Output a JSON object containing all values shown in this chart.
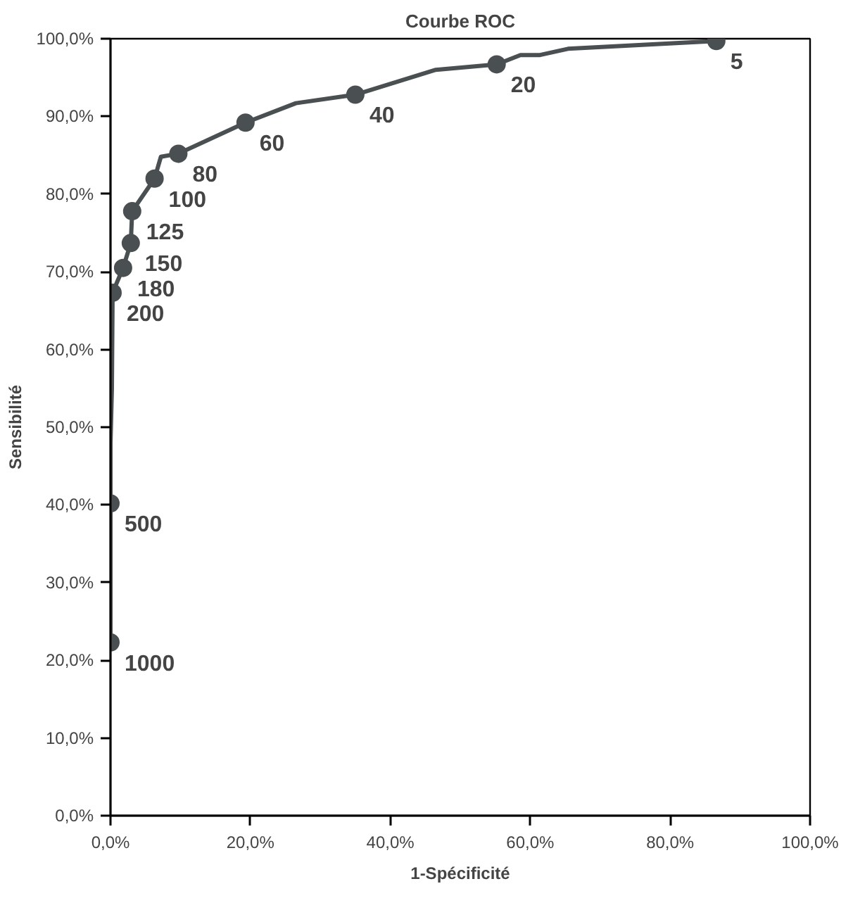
{
  "chart_data": {
    "type": "line",
    "title": "Courbe ROC",
    "xlabel": "1-Spécificité",
    "ylabel": "Sensibilité",
    "xlim": [
      0,
      100
    ],
    "ylim": [
      0,
      100
    ],
    "xticks": [
      {
        "value": 0,
        "label": "0,0%"
      },
      {
        "value": 20,
        "label": "20,0%"
      },
      {
        "value": 40,
        "label": "40,0%"
      },
      {
        "value": 60,
        "label": "60,0%"
      },
      {
        "value": 80,
        "label": "80,0%"
      },
      {
        "value": 100,
        "label": "100,0%"
      }
    ],
    "yticks": [
      {
        "value": 0,
        "label": "0,0%"
      },
      {
        "value": 10,
        "label": "10,0%"
      },
      {
        "value": 20,
        "label": "20,0%"
      },
      {
        "value": 30,
        "label": "30,0%"
      },
      {
        "value": 40,
        "label": "40,0%"
      },
      {
        "value": 50,
        "label": "50,0%"
      },
      {
        "value": 60,
        "label": "60,0%"
      },
      {
        "value": 70,
        "label": "70,0%"
      },
      {
        "value": 80,
        "label": "80,0%"
      },
      {
        "value": 90,
        "label": "90,0%"
      },
      {
        "value": 100,
        "label": "100,0%"
      }
    ],
    "grid": false,
    "series": [
      {
        "color": "#4a4f52",
        "marker": "none",
        "line_style": "solid",
        "x": [
          0,
          0,
          0,
          0.2,
          0.3,
          1.8,
          2.9,
          3.1,
          6.3,
          7.2,
          9.7,
          19.3,
          26.5,
          35.0,
          46.5,
          55.2,
          58.6,
          61.4,
          65.4,
          86.6
        ],
        "values": [
          22.3,
          40.2,
          47.9,
          55,
          67.3,
          70.5,
          73.7,
          77.8,
          82.0,
          84.8,
          85.2,
          89.2,
          91.7,
          92.8,
          96.0,
          96.7,
          97.9,
          97.9,
          98.7,
          99.7
        ]
      },
      {
        "type": "scatter",
        "color": "#4a4f52",
        "marker": "circle",
        "x": [
          0,
          0,
          0.3,
          1.8,
          2.9,
          3.1,
          6.3,
          9.7,
          19.3,
          35.0,
          55.2,
          86.6
        ],
        "values": [
          22.3,
          40.2,
          67.3,
          70.5,
          73.7,
          77.8,
          82.0,
          85.2,
          89.2,
          92.8,
          96.7,
          99.7
        ]
      }
    ],
    "annotations": [
      {
        "text": "1000",
        "x": 0,
        "y": 22.3
      },
      {
        "text": "500",
        "x": 0,
        "y": 40.2
      },
      {
        "text": "200",
        "x": 0.3,
        "y": 67.3
      },
      {
        "text": "180",
        "x": 1.8,
        "y": 70.5
      },
      {
        "text": "150",
        "x": 2.9,
        "y": 73.7
      },
      {
        "text": "125",
        "x": 3.1,
        "y": 77.8
      },
      {
        "text": "100",
        "x": 6.3,
        "y": 82.0
      },
      {
        "text": "80",
        "x": 9.7,
        "y": 85.2
      },
      {
        "text": "60",
        "x": 19.3,
        "y": 89.2
      },
      {
        "text": "40",
        "x": 35.0,
        "y": 92.8
      },
      {
        "text": "20",
        "x": 55.2,
        "y": 96.7
      },
      {
        "text": "5",
        "x": 86.6,
        "y": 99.7
      }
    ]
  }
}
